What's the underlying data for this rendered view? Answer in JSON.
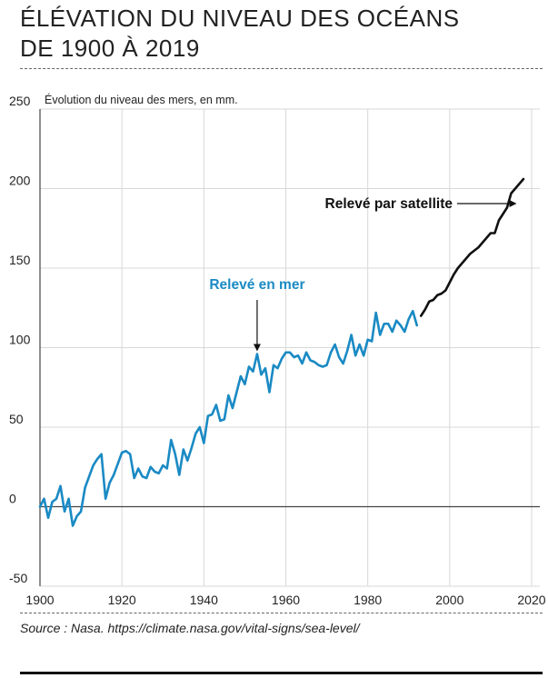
{
  "title": {
    "line1": "ÉLÉVATION DU NIVEAU DES OCÉANS",
    "line2": "DE 1900 À 2019"
  },
  "source": "Source : Nasa. https://climate.nasa.gov/vital-signs/sea-level/",
  "colors": {
    "sea": "#1a8ac4",
    "satellite": "#111111",
    "grid": "#d8d8d8"
  },
  "chart_data": {
    "type": "line",
    "title": "ÉLÉVATION DU NIVEAU DES OCÉANS DE 1900 À 2019",
    "ylabel": "Évolution du niveau des mers, en mm.",
    "xlabel": "",
    "xlim": [
      1900,
      2022
    ],
    "ylim": [
      -50,
      250
    ],
    "x_ticks": [
      "1900",
      "1920",
      "1940",
      "1960",
      "1980",
      "2000",
      "2020"
    ],
    "y_ticks": [
      "-50",
      "0",
      "50",
      "100",
      "150",
      "200",
      "250"
    ],
    "grid": true,
    "series": [
      {
        "name": "Relevé en mer",
        "color": "#1a8ac4",
        "x": [
          1900,
          1901,
          1902,
          1903,
          1904,
          1905,
          1906,
          1907,
          1908,
          1909,
          1910,
          1911,
          1912,
          1913,
          1914,
          1915,
          1916,
          1917,
          1918,
          1919,
          1920,
          1921,
          1922,
          1923,
          1924,
          1925,
          1926,
          1927,
          1928,
          1929,
          1930,
          1931,
          1932,
          1933,
          1934,
          1935,
          1936,
          1937,
          1938,
          1939,
          1940,
          1941,
          1942,
          1943,
          1944,
          1945,
          1946,
          1947,
          1948,
          1949,
          1950,
          1951,
          1952,
          1953,
          1954,
          1955,
          1956,
          1957,
          1958,
          1959,
          1960,
          1961,
          1962,
          1963,
          1964,
          1965,
          1966,
          1967,
          1968,
          1969,
          1970,
          1971,
          1972,
          1973,
          1974,
          1975,
          1976,
          1977,
          1978,
          1979,
          1980,
          1981,
          1982,
          1983,
          1984,
          1985,
          1986,
          1987,
          1988,
          1989,
          1990,
          1991,
          1992
        ],
        "values": [
          0,
          5,
          -7,
          3,
          5,
          13,
          -3,
          5,
          -12,
          -6,
          -3,
          12,
          19,
          26,
          30,
          33,
          5,
          15,
          20,
          27,
          34,
          35,
          33,
          18,
          24,
          19,
          18,
          25,
          22,
          21,
          26,
          24,
          42,
          33,
          20,
          36,
          29,
          37,
          46,
          50,
          40,
          57,
          58,
          64,
          54,
          55,
          70,
          62,
          72,
          82,
          77,
          88,
          85,
          96,
          83,
          87,
          72,
          89,
          87,
          93,
          97,
          97,
          94,
          95,
          90,
          97,
          92,
          91,
          89,
          88,
          89,
          97,
          102,
          94,
          90,
          98,
          108,
          95,
          102,
          95,
          105,
          104,
          122,
          108,
          115,
          115,
          110,
          117,
          114,
          110,
          118,
          123,
          114
        ],
        "annotation": "Relevé en mer"
      },
      {
        "name": "Relevé par satellite",
        "color": "#111111",
        "x": [
          1993,
          1994,
          1995,
          1996,
          1997,
          1998,
          1999,
          2000,
          2001,
          2002,
          2003,
          2004,
          2005,
          2006,
          2007,
          2008,
          2009,
          2010,
          2011,
          2012,
          2013,
          2014,
          2015,
          2016,
          2017,
          2018
        ],
        "values": [
          120,
          124,
          129,
          130,
          133,
          134,
          136,
          141,
          146,
          150,
          153,
          156,
          159,
          161,
          163,
          166,
          169,
          172,
          172,
          180,
          184,
          188,
          197,
          200,
          203,
          206
        ],
        "annotation": "Relevé par satellite"
      }
    ],
    "annotations": [
      {
        "text": "Relevé en mer",
        "points_to": {
          "x": 1953,
          "y": 96
        }
      },
      {
        "text": "Relevé par satellite",
        "points_to": {
          "x": 2017,
          "y": 203
        }
      }
    ]
  }
}
